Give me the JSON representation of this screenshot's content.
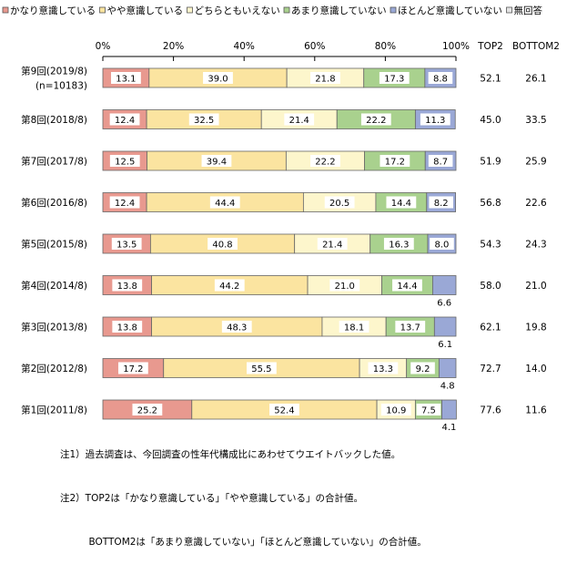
{
  "chart_data": {
    "type": "bar",
    "stacked": true,
    "orientation": "horizontal",
    "legend": [
      "かなり意識している",
      "やや意識している",
      "どちらともいえない",
      "あまり意識していない",
      "ほとんど意識していない",
      "無回答"
    ],
    "legend_position": "top",
    "x_ticks": [
      "0%",
      "20%",
      "40%",
      "60%",
      "80%",
      "100%"
    ],
    "xlim": [
      0,
      100
    ],
    "grid": false,
    "categories": [
      [
        "第9回(2019/8)",
        "(n=10183)"
      ],
      [
        "第8回(2018/8)"
      ],
      [
        "第7回(2017/8)"
      ],
      [
        "第6回(2016/8)"
      ],
      [
        "第5回(2015/8)"
      ],
      [
        "第4回(2014/8)"
      ],
      [
        "第3回(2013/8)"
      ],
      [
        "第2回(2012/8)"
      ],
      [
        "第1回(2011/8)"
      ]
    ],
    "series": [
      {
        "name": "かなり意識している",
        "color": "#e8998f",
        "values": [
          13.1,
          12.4,
          12.5,
          12.4,
          13.5,
          13.8,
          13.8,
          17.2,
          25.2
        ]
      },
      {
        "name": "やや意識している",
        "color": "#fbe4a0",
        "values": [
          39.0,
          32.5,
          39.4,
          44.4,
          40.8,
          44.2,
          48.3,
          55.5,
          52.4
        ]
      },
      {
        "name": "どちらともいえない",
        "color": "#fdf6cc",
        "values": [
          21.8,
          21.4,
          22.2,
          20.5,
          21.4,
          21.0,
          18.1,
          13.3,
          10.9
        ]
      },
      {
        "name": "あまり意識していない",
        "color": "#a9d18e",
        "values": [
          17.3,
          22.2,
          17.2,
          14.4,
          16.3,
          14.4,
          13.7,
          9.2,
          7.5
        ]
      },
      {
        "name": "ほとんど意識していない",
        "color": "#9aa8d6",
        "values": [
          8.8,
          11.3,
          8.7,
          8.2,
          8.0,
          6.6,
          6.1,
          4.8,
          4.1
        ]
      },
      {
        "name": "無回答",
        "color": "#e5e5e5",
        "values": [
          0,
          0,
          0,
          0,
          0,
          0,
          0,
          0,
          0
        ]
      }
    ],
    "extra_columns": [
      {
        "header": "TOP2",
        "values": [
          "52.1",
          "45.0",
          "51.9",
          "56.8",
          "54.3",
          "58.0",
          "62.1",
          "72.7",
          "77.6"
        ]
      },
      {
        "header": "BOTTOM2",
        "values": [
          "26.1",
          "33.5",
          "25.9",
          "22.6",
          "24.3",
          "21.0",
          "19.8",
          "14.0",
          "11.6"
        ]
      }
    ],
    "bar_labels": [
      [
        "13.1",
        "39.0",
        "21.8",
        "17.3",
        "8.8"
      ],
      [
        "12.4",
        "32.5",
        "21.4",
        "22.2",
        "11.3"
      ],
      [
        "12.5",
        "39.4",
        "22.2",
        "17.2",
        "8.7"
      ],
      [
        "12.4",
        "44.4",
        "20.5",
        "14.4",
        "8.2"
      ],
      [
        "13.5",
        "40.8",
        "21.4",
        "16.3",
        "8.0"
      ],
      [
        "13.8",
        "44.2",
        "21.0",
        "14.4",
        "6.6"
      ],
      [
        "13.8",
        "48.3",
        "18.1",
        "13.7",
        "6.1"
      ],
      [
        "17.2",
        "55.5",
        "13.3",
        "9.2",
        "4.8"
      ],
      [
        "25.2",
        "52.4",
        "10.9",
        "7.5",
        "4.1"
      ]
    ]
  },
  "notes": [
    "注1）過去調査は、今回調査の性年代構成比にあわせてウエイトバックした値。",
    "注2）TOP2は「かなり意識している」「やや意識している」の合計値。",
    "　　　BOTTOM2は「あまり意識していない」「ほとんど意識していない」の合計値。"
  ]
}
